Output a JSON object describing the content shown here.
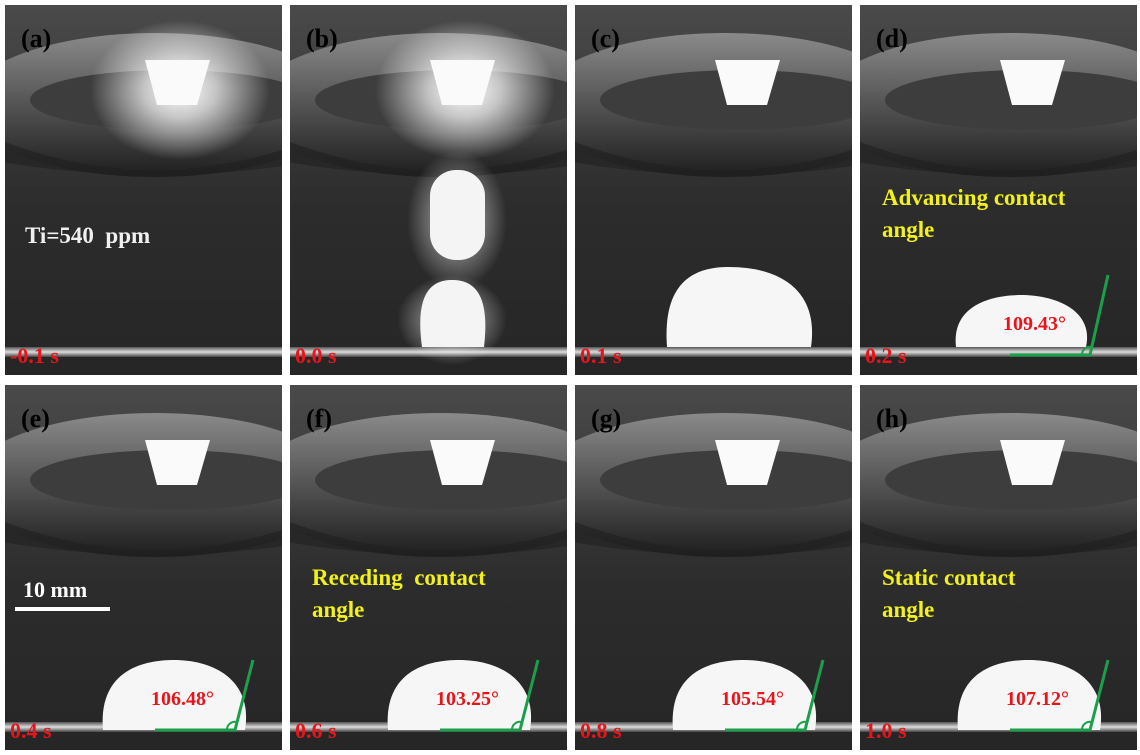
{
  "panels": [
    {
      "label": "(a)",
      "time": "-0.1 s",
      "note": [
        "Ti=540  ppm"
      ]
    },
    {
      "label": "(b)",
      "time": "0.0 s"
    },
    {
      "label": "(c)",
      "time": "0.1 s"
    },
    {
      "label": "(d)",
      "time": "0.2 s",
      "note": [
        "Advancing contact",
        "angle"
      ],
      "angle": "109.43°"
    },
    {
      "label": "(e)",
      "time": "0.4 s",
      "angle": "106.48°",
      "scale_bar": "10 mm"
    },
    {
      "label": "(f)",
      "time": "0.6 s",
      "note": [
        "Receding  contact",
        "angle"
      ],
      "angle": "103.25°"
    },
    {
      "label": "(g)",
      "time": "0.8 s",
      "angle": "105.54°"
    },
    {
      "label": "(h)",
      "time": "1.0 s",
      "note": [
        "Static contact",
        "angle"
      ],
      "angle": "107.12°"
    }
  ]
}
